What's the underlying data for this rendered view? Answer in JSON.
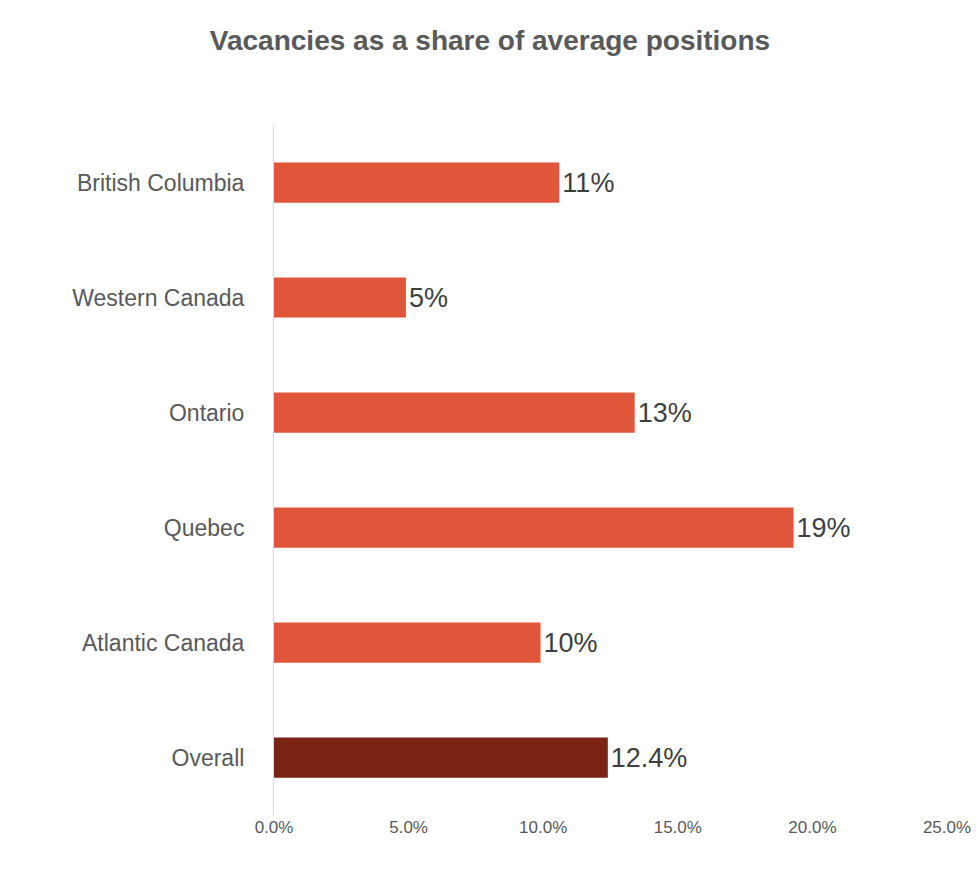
{
  "chart_data": {
    "type": "bar",
    "orientation": "horizontal",
    "title": "Vacancies as a share of average positions",
    "categories": [
      "British Columbia",
      "Western Canada",
      "Ontario",
      "Quebec",
      "Atlantic Canada",
      "Overall"
    ],
    "values": [
      10.6,
      4.9,
      13.4,
      19.3,
      9.9,
      12.4
    ],
    "value_labels": [
      "11%",
      "5%",
      "13%",
      "19%",
      "10%",
      "12.4%"
    ],
    "colors": [
      "#E0563A",
      "#E0563A",
      "#E0563A",
      "#E0563A",
      "#E0563A",
      "#7B2315"
    ],
    "data_labels": true,
    "xlim": [
      0,
      25
    ],
    "xticks": [
      {
        "value": 0,
        "label": "0.0%"
      },
      {
        "value": 5,
        "label": "5.0%"
      },
      {
        "value": 10,
        "label": "10.0%"
      },
      {
        "value": 15,
        "label": "15.0%"
      },
      {
        "value": 20,
        "label": "20.0%"
      },
      {
        "value": 25,
        "label": "25.0%"
      }
    ],
    "grid": false
  }
}
